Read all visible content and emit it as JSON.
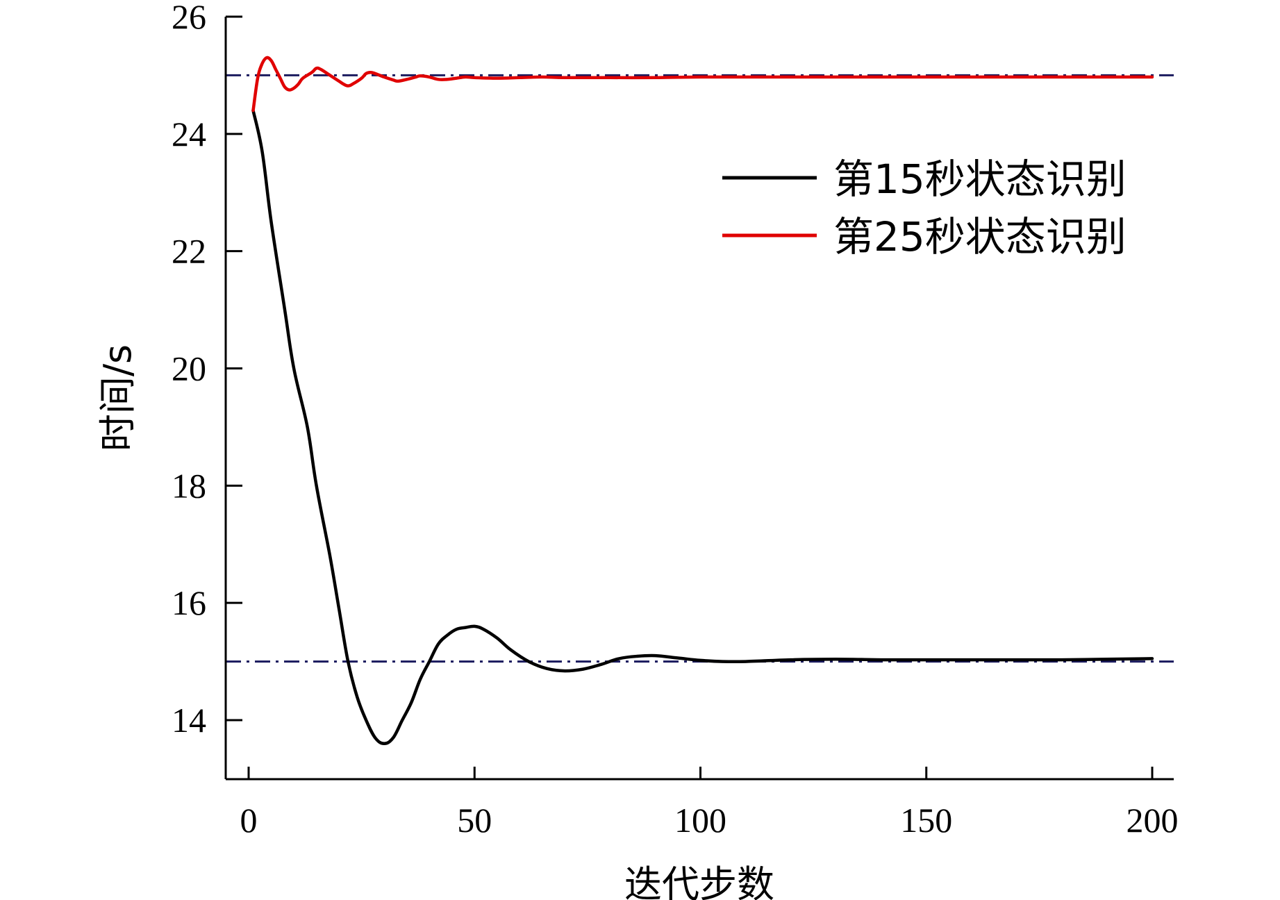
{
  "chart_data": {
    "type": "line",
    "title": "",
    "xlabel": "迭代步数",
    "ylabel": "时间/s",
    "xlim": [
      -5,
      205
    ],
    "ylim": [
      13,
      26
    ],
    "xticks": [
      0,
      50,
      100,
      150,
      200
    ],
    "yticks": [
      14,
      16,
      18,
      20,
      22,
      24,
      26
    ],
    "grid": false,
    "legend_position": "upper-right",
    "reference_lines": [
      {
        "y": 15,
        "style": "dash-dot",
        "color": "#1a1a5e"
      },
      {
        "y": 25,
        "style": "dash-dot",
        "color": "#1a1a5e"
      }
    ],
    "series": [
      {
        "name": "第15秒状态识别",
        "color": "#000000",
        "points": [
          [
            1,
            24.4
          ],
          [
            3,
            23.7
          ],
          [
            5,
            22.5
          ],
          [
            8,
            21.0
          ],
          [
            10,
            20.0
          ],
          [
            13,
            19.0
          ],
          [
            15,
            18.0
          ],
          [
            18,
            16.8
          ],
          [
            20,
            15.9
          ],
          [
            22,
            15.0
          ],
          [
            24,
            14.4
          ],
          [
            26,
            14.0
          ],
          [
            28,
            13.7
          ],
          [
            30,
            13.6
          ],
          [
            32,
            13.7
          ],
          [
            34,
            14.0
          ],
          [
            36,
            14.3
          ],
          [
            38,
            14.7
          ],
          [
            40,
            15.0
          ],
          [
            42,
            15.3
          ],
          [
            44,
            15.45
          ],
          [
            46,
            15.55
          ],
          [
            48,
            15.58
          ],
          [
            50,
            15.6
          ],
          [
            52,
            15.55
          ],
          [
            55,
            15.4
          ],
          [
            58,
            15.2
          ],
          [
            62,
            15.0
          ],
          [
            66,
            14.88
          ],
          [
            70,
            14.84
          ],
          [
            74,
            14.87
          ],
          [
            78,
            14.95
          ],
          [
            82,
            15.05
          ],
          [
            86,
            15.09
          ],
          [
            90,
            15.1
          ],
          [
            95,
            15.06
          ],
          [
            100,
            15.02
          ],
          [
            105,
            15.0
          ],
          [
            110,
            15.0
          ],
          [
            120,
            15.03
          ],
          [
            130,
            15.04
          ],
          [
            140,
            15.03
          ],
          [
            150,
            15.03
          ],
          [
            160,
            15.03
          ],
          [
            170,
            15.03
          ],
          [
            180,
            15.03
          ],
          [
            190,
            15.04
          ],
          [
            200,
            15.05
          ]
        ]
      },
      {
        "name": "第25秒状态识别",
        "color": "#e00000",
        "points": [
          [
            1,
            24.4
          ],
          [
            2,
            24.95
          ],
          [
            3,
            25.2
          ],
          [
            4,
            25.3
          ],
          [
            5,
            25.25
          ],
          [
            6,
            25.1
          ],
          [
            7,
            24.95
          ],
          [
            8,
            24.8
          ],
          [
            9,
            24.75
          ],
          [
            10,
            24.78
          ],
          [
            11,
            24.85
          ],
          [
            12,
            24.95
          ],
          [
            14,
            25.05
          ],
          [
            15,
            25.12
          ],
          [
            16,
            25.1
          ],
          [
            18,
            25.0
          ],
          [
            20,
            24.9
          ],
          [
            21,
            24.85
          ],
          [
            22,
            24.82
          ],
          [
            23,
            24.85
          ],
          [
            25,
            24.95
          ],
          [
            26,
            25.03
          ],
          [
            27,
            25.05
          ],
          [
            28,
            25.03
          ],
          [
            30,
            24.97
          ],
          [
            32,
            24.92
          ],
          [
            33,
            24.9
          ],
          [
            35,
            24.93
          ],
          [
            37,
            24.97
          ],
          [
            38,
            24.99
          ],
          [
            40,
            24.97
          ],
          [
            42,
            24.93
          ],
          [
            44,
            24.93
          ],
          [
            46,
            24.95
          ],
          [
            48,
            24.97
          ],
          [
            50,
            24.96
          ],
          [
            55,
            24.95
          ],
          [
            60,
            24.96
          ],
          [
            65,
            24.97
          ],
          [
            70,
            24.96
          ],
          [
            80,
            24.96
          ],
          [
            90,
            24.96
          ],
          [
            100,
            24.97
          ],
          [
            120,
            24.97
          ],
          [
            140,
            24.97
          ],
          [
            160,
            24.97
          ],
          [
            180,
            24.97
          ],
          [
            200,
            24.97
          ]
        ]
      }
    ]
  }
}
